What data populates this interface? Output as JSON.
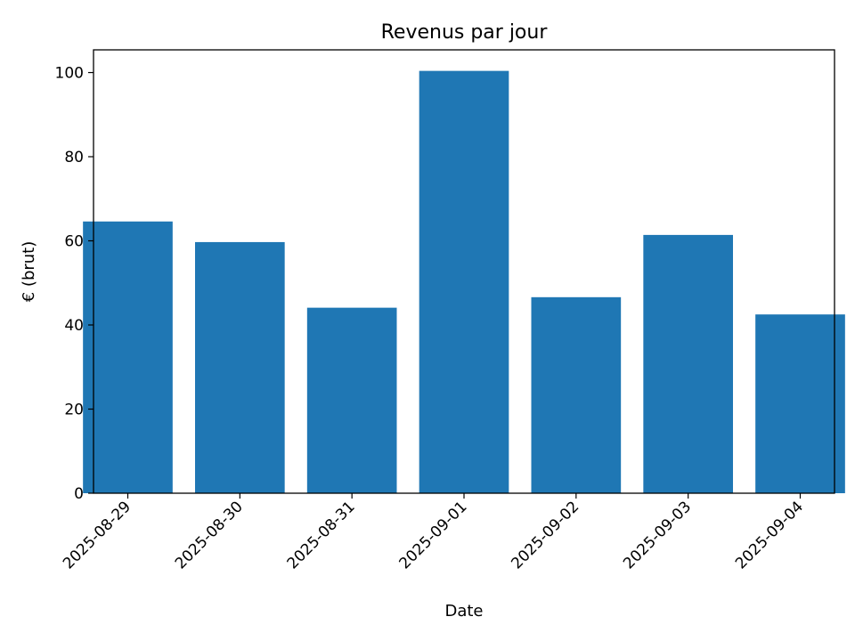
{
  "chart_data": {
    "type": "bar",
    "title": "Revenus par jour",
    "xlabel": "Date",
    "ylabel": "€ (brut)",
    "categories": [
      "2025-08-29",
      "2025-08-30",
      "2025-08-31",
      "2025-09-01",
      "2025-09-02",
      "2025-09-03",
      "2025-09-04"
    ],
    "values": [
      64.6,
      59.7,
      44.1,
      100.4,
      46.6,
      61.4,
      42.5
    ],
    "ylim": [
      0,
      105.4
    ],
    "yticks": [
      0,
      20,
      40,
      60,
      80,
      100
    ],
    "grid": false,
    "bar_color": "#1f77b4"
  }
}
